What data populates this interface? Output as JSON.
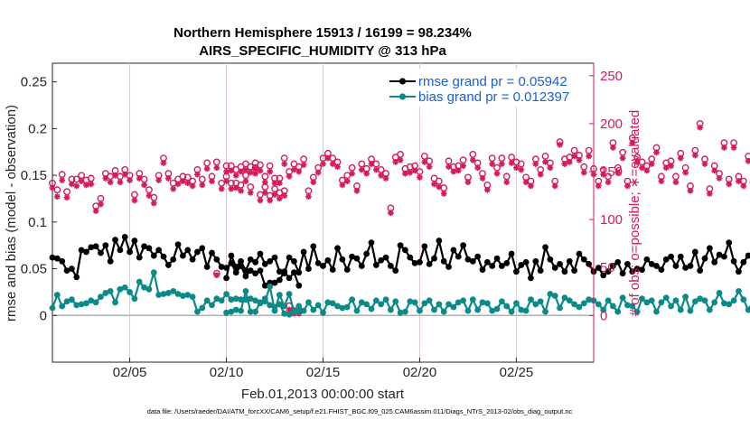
{
  "chart_data": {
    "type": "line",
    "title": "Northern Hemisphere 15913 / 16199 = 98.234%",
    "subtitle": "AIRS_SPECIFIC_HUMIDITY @ 313 hPa",
    "xlabel": "Feb.01,2013 00:00:00 start",
    "ylabel": "rmse and bias (model - observation)",
    "y2label": "# of obs: o=possible; ∗=evaluated",
    "xlim": [
      1,
      29
    ],
    "ylim": [
      -0.05,
      0.27
    ],
    "y2lim": [
      -48.65,
      263.0
    ],
    "x_ticks": [
      {
        "value": 5,
        "label": "02/05"
      },
      {
        "value": 10,
        "label": "02/10"
      },
      {
        "value": 15,
        "label": "02/15"
      },
      {
        "value": 20,
        "label": "02/20"
      },
      {
        "value": 25,
        "label": "02/25"
      }
    ],
    "y_ticks": [
      {
        "value": 0,
        "label": "0"
      },
      {
        "value": 0.05,
        "label": "0.05"
      },
      {
        "value": 0.1,
        "label": "0.1"
      },
      {
        "value": 0.15,
        "label": "0.15"
      },
      {
        "value": 0.2,
        "label": "0.2"
      },
      {
        "value": 0.25,
        "label": "0.25"
      }
    ],
    "y2_ticks": [
      {
        "value": 0,
        "label": "0"
      },
      {
        "value": 50,
        "label": "50"
      },
      {
        "value": 100,
        "label": "100"
      },
      {
        "value": 150,
        "label": "150"
      },
      {
        "value": 200,
        "label": "200"
      },
      {
        "value": 250,
        "label": "250"
      }
    ],
    "x_step": 0.25,
    "legend_position": "top-right",
    "gap_start_x": 9.0,
    "gap_end_x": 10.0,
    "series": [
      {
        "name": "rmse grand pr = 0.05942",
        "color": "#000000",
        "part1_values": [
          0.062,
          0.061,
          0.058,
          0.048,
          0.05,
          0.041,
          0.07,
          0.068,
          0.073,
          0.074,
          0.067,
          0.075,
          0.058,
          0.081,
          0.07,
          0.084,
          0.068,
          0.08,
          0.062,
          0.074,
          0.072,
          0.064,
          0.07,
          0.063,
          0.054,
          0.06,
          0.076,
          0.064,
          0.07,
          0.06,
          0.068,
          0.072,
          0.052,
          0.067,
          0.06,
          0.052,
          0.051,
          0.056,
          0.046,
          0.053,
          0.042,
          0.048,
          0.045,
          0.048,
          0.032,
          0.035,
          0.035,
          0.038,
          0.047,
          0.04,
          0.046,
          0.032
        ],
        "part2_values": [
          0.04,
          0.064,
          0.052,
          0.058,
          0.048,
          0.06,
          0.057,
          0.066,
          0.055,
          0.058,
          0.062,
          0.047,
          0.045,
          0.062,
          0.058,
          0.046,
          0.068,
          0.05,
          0.074,
          0.056,
          0.053,
          0.059,
          0.049,
          0.072,
          0.06,
          0.049,
          0.063,
          0.061,
          0.053,
          0.066,
          0.078,
          0.054,
          0.059,
          0.062,
          0.053,
          0.048,
          0.075,
          0.07,
          0.062,
          0.056,
          0.057,
          0.074,
          0.055,
          0.061,
          0.08,
          0.058,
          0.052,
          0.07,
          0.063,
          0.075,
          0.06,
          0.058,
          0.063,
          0.049,
          0.057,
          0.053,
          0.061,
          0.053,
          0.056,
          0.066,
          0.047,
          0.054,
          0.057,
          0.04,
          0.058,
          0.048,
          0.073,
          0.06,
          0.051,
          0.055,
          0.047,
          0.058,
          0.048,
          0.066,
          0.06,
          0.055,
          0.047,
          0.051,
          0.043,
          0.047,
          0.053,
          0.057,
          0.045,
          0.055,
          0.047,
          0.05,
          0.049,
          0.06,
          0.055,
          0.053,
          0.049,
          0.06,
          0.063,
          0.053,
          0.063,
          0.051,
          0.053,
          0.068,
          0.048,
          0.061,
          0.072,
          0.057,
          0.065,
          0.063,
          0.078,
          0.058,
          0.047,
          0.057,
          0.064,
          0.06,
          0.07,
          0.053,
          0.072,
          0.047,
          0.05,
          0.053,
          0.06,
          0.06,
          0.047,
          0.046
        ]
      },
      {
        "name": "bias grand pr = 0.012397",
        "color": "#0b8a8a",
        "part1_values": [
          0.008,
          0.022,
          0.01,
          0.015,
          0.017,
          0.011,
          0.012,
          0.013,
          0.016,
          0.014,
          0.02,
          0.024,
          0.026,
          0.014,
          0.028,
          0.03,
          0.025,
          0.018,
          0.036,
          0.03,
          0.028,
          0.046,
          0.022,
          0.023,
          0.024,
          0.026,
          0.023,
          0.021,
          0.022,
          0.02,
          0.004,
          0.008,
          0.016,
          0.011,
          0.018,
          0.016,
          0.023,
          0.017,
          0.018,
          0.017,
          0.017,
          0.018,
          0.016,
          0.013,
          0.018,
          0.011,
          0.009,
          0.012,
          0.002,
          0.001,
          0.005,
          0.004
        ],
        "part2_values": [
          0.003,
          0.004,
          0.006,
          0.005,
          0.026,
          0.004,
          0.004,
          0.014,
          0.015,
          0.031,
          0.005,
          0.022,
          0.01,
          0.023,
          0.004,
          0.01,
          0.005,
          0.014,
          0.006,
          0.011,
          0.003,
          0.014,
          0.013,
          0.01,
          0.008,
          0.009,
          0.017,
          0.005,
          0.014,
          0.012,
          0.007,
          0.016,
          0.012,
          0.017,
          0.006,
          0.015,
          0.003,
          0.004,
          0.015,
          0.014,
          0.005,
          0.013,
          0.016,
          0.006,
          0.012,
          0.004,
          0.012,
          0.009,
          0.014,
          0.016,
          0.005,
          0.017,
          0.006,
          0.014,
          0.013,
          0.005,
          0.007,
          0.015,
          0.01,
          0.004,
          0.013,
          0.006,
          0.005,
          0.017,
          0.012,
          0.015,
          0.004,
          0.023,
          0.021,
          0.008,
          0.019,
          0.016,
          0.012,
          0.009,
          0.013,
          0.017,
          0.016,
          0.012,
          0.006,
          0.016,
          0.01,
          0.004,
          0.019,
          0.011,
          0.01,
          0.004,
          0.018,
          0.014,
          0.016,
          0.004,
          0.014,
          0.019,
          0.01,
          0.016,
          0.006,
          0.02,
          0.005,
          0.015,
          0.018,
          0.016,
          0.006,
          0.014,
          0.024,
          0.013,
          0.012,
          0.016,
          0.026,
          0.017,
          0.006,
          0.015,
          0.005,
          0.015,
          0.012,
          0.014,
          0.006,
          0.007,
          0.004,
          0.016,
          0.004,
          0.001
        ]
      }
    ],
    "obs_counts": {
      "color": "#d6195c",
      "possible_values": [
        138,
        131,
        147,
        129,
        142,
        142,
        146,
        141,
        143,
        114,
        122,
        148,
        145,
        151,
        145,
        152,
        146,
        126,
        148,
        142,
        131,
        123,
        146,
        164,
        148,
        138,
        142,
        145,
        144,
        140,
        152,
        142,
        159,
        145,
        160,
        138,
        145,
        138,
        152,
        136,
        158,
        134,
        154,
        126,
        134,
        125,
        132,
        128,
        130,
        10,
        5,
        4
      ],
      "evaluated_values": [
        133,
        124,
        141,
        123,
        137,
        135,
        140,
        136,
        137,
        109,
        116,
        143,
        139,
        146,
        139,
        147,
        141,
        120,
        143,
        136,
        125,
        117,
        141,
        159,
        143,
        132,
        137,
        140,
        138,
        135,
        147,
        136,
        153,
        140,
        154,
        132,
        140,
        132,
        146,
        130,
        152,
        128,
        148,
        120,
        128,
        120,
        126,
        122,
        125,
        6,
        2,
        2
      ],
      "gap_possible": 44,
      "gap_evaluated": 42,
      "part2_possible_values": [
        156,
        156,
        138,
        155,
        146,
        155,
        159,
        157,
        145,
        156,
        143,
        143,
        164,
        150,
        158,
        155,
        163,
        130,
        144,
        154,
        164,
        169,
        164,
        160,
        141,
        146,
        154,
        135,
        158,
        153,
        163,
        158,
        152,
        148,
        112,
        165,
        168,
        153,
        155,
        156,
        150,
        166,
        161,
        143,
        140,
        133,
        161,
        155,
        156,
        162,
        144,
        168,
        159,
        148,
        136,
        164,
        154,
        164,
        145,
        165,
        160,
        158,
        144,
        140,
        163,
        152,
        166,
        159,
        140,
        181,
        163,
        165,
        172,
        167,
        155,
        172,
        153,
        140,
        152,
        145,
        180,
        154,
        170,
        140,
        185,
        165,
        160,
        156,
        163,
        175,
        145,
        159,
        161,
        145,
        169,
        154,
        135,
        172,
        200,
        163,
        132,
        156,
        148,
        180,
        142,
        180,
        145,
        140,
        166,
        139,
        213,
        200,
        170,
        180,
        186,
        140,
        165,
        192,
        164,
        246,
        145,
        171,
        170,
        162,
        160
      ],
      "part2_evaluated_values": [
        150,
        151,
        133,
        150,
        140,
        149,
        153,
        151,
        139,
        150,
        138,
        138,
        158,
        145,
        152,
        150,
        157,
        124,
        139,
        149,
        158,
        164,
        158,
        155,
        136,
        140,
        148,
        130,
        152,
        148,
        158,
        152,
        146,
        143,
        107,
        160,
        162,
        148,
        149,
        151,
        144,
        160,
        155,
        137,
        134,
        127,
        155,
        150,
        151,
        156,
        139,
        162,
        154,
        143,
        131,
        158,
        148,
        158,
        139,
        159,
        154,
        152,
        139,
        135,
        158,
        147,
        160,
        154,
        135,
        178,
        158,
        160,
        166,
        162,
        149,
        166,
        147,
        135,
        147,
        139,
        175,
        149,
        164,
        135,
        180,
        160,
        154,
        151,
        158,
        170,
        140,
        154,
        156,
        139,
        164,
        149,
        130,
        167,
        196,
        158,
        127,
        151,
        143,
        175,
        137,
        175,
        140,
        135,
        161,
        134,
        218,
        196,
        166,
        176,
        182,
        135,
        161,
        188,
        160,
        242,
        140,
        167,
        166,
        158,
        156
      ]
    },
    "footnote": "data file: /Users/raeder/DAI/ATM_forcXX/CAM6_setup/f.e21.FHIST_BGC.f09_025.CAM6assim.011/Diags_NTrS_2013-02/obs_diag_output.nc"
  }
}
